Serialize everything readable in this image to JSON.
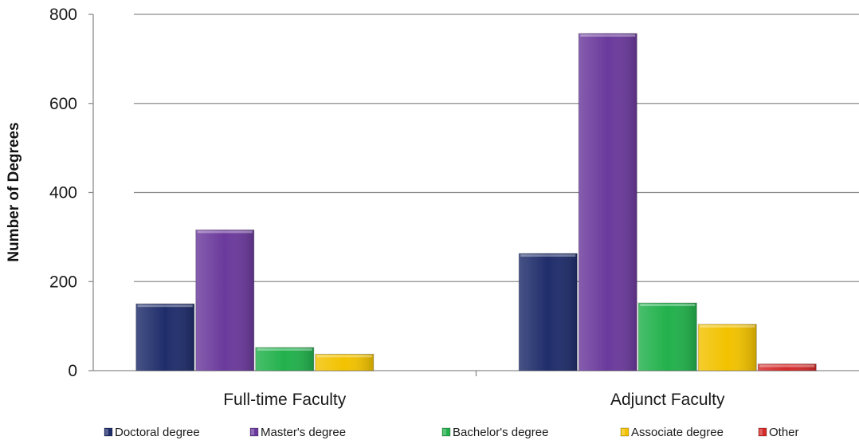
{
  "chart_data": {
    "type": "bar",
    "title": "",
    "xlabel": "",
    "ylabel": "Number of Degrees",
    "ylim": [
      0,
      800
    ],
    "yticks": [
      0,
      200,
      400,
      600,
      800
    ],
    "grid": true,
    "legend_position": "bottom",
    "categories": [
      "Full-time Faculty",
      "Adjunct Faculty"
    ],
    "series": [
      {
        "name": "Doctoral degree",
        "values": [
          150,
          263
        ],
        "color": "#1f2d6b"
      },
      {
        "name": "Master's degree",
        "values": [
          316,
          757
        ],
        "color": "#6b3a9c"
      },
      {
        "name": "Bachelor's degree",
        "values": [
          52,
          152
        ],
        "color": "#22b14c"
      },
      {
        "name": "Associate degree",
        "values": [
          37,
          104
        ],
        "color": "#f2c200"
      },
      {
        "name": "Other",
        "values": [
          0,
          15
        ],
        "color": "#d42a2a"
      }
    ]
  }
}
